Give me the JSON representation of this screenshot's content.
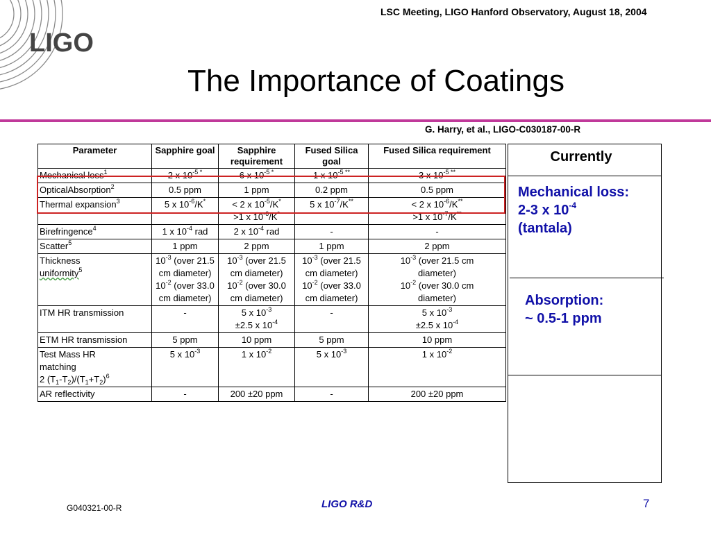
{
  "header": {
    "meeting": "LSC Meeting, LIGO Hanford Observatory, August 18, 2004"
  },
  "logo": {
    "text": "LIGO"
  },
  "title": "The Importance of Coatings",
  "citation": "G. Harry, et al.,  LIGO-C030187-00-R",
  "colors": {
    "accent_line": "#c0399a",
    "highlight": "#cc2222",
    "blue_text": "#1010a8"
  },
  "table": {
    "headers": [
      "Parameter",
      "Sapphire goal",
      "Sapphire requirement",
      "Fused Silica goal",
      "Fused Silica requirement"
    ],
    "rows": [
      {
        "param": "Mechanical loss",
        "param_sup": "1",
        "cells": [
          "2 x 10-5*",
          "6 x 10-5*",
          "1 x 10-5**",
          "3 x 10-5**"
        ]
      },
      {
        "param": "OpticalAbsorption",
        "param_sup": "2",
        "cells": [
          "0.5 ppm",
          "1 ppm",
          "0.2 ppm",
          "0.5 ppm"
        ]
      },
      {
        "param": "Thermal expansion",
        "param_sup": "3",
        "cells": [
          "5 x 10-6/K*",
          "< 2 x 10-5/K* >1 x 10-6/K*",
          "5 x 10-7/K**",
          "< 2 x 10-6/K** >1 x 10-7/K**"
        ]
      },
      {
        "param": "Birefringence",
        "param_sup": "4",
        "cells": [
          "1 x 10-4 rad",
          "2 x 10-4 rad",
          "-",
          "-"
        ]
      },
      {
        "param": "Scatter",
        "param_sup": "5",
        "cells": [
          "1 ppm",
          "2 ppm",
          "1 ppm",
          "2 ppm"
        ]
      },
      {
        "param": "Thickness uniformity",
        "param_sup": "5",
        "cells": [
          "10-3 (over 21.5 cm diameter) 10-2 (over 33.0 cm diameter)",
          "10-3 (over 21.5 cm diameter) 10-2 (over 30.0 cm diameter)",
          "10-3 (over 21.5 cm diameter) 10-2 (over 33.0 cm diameter)",
          "10-3 (over 21.5 cm diameter) 10-2 (over 30.0 cm diameter)"
        ]
      },
      {
        "param": "ITM HR transmission",
        "param_sup": "",
        "cells": [
          "-",
          "5 x 10-3 ±2.5 x 10-4",
          "-",
          "5 x 10-3 ±2.5 x 10-4"
        ]
      },
      {
        "param": "ETM HR transmission",
        "param_sup": "",
        "cells": [
          "5 ppm",
          "10 ppm",
          "5 ppm",
          "10 ppm"
        ]
      },
      {
        "param": "Test Mass HR matching 2 (T1-T2)/(T1+T2)",
        "param_sup": "6",
        "cells": [
          "5 x 10-3",
          "1 x 10-2",
          "5 x 10-3",
          "1 x 10-2"
        ]
      },
      {
        "param": "AR reflectivity",
        "param_sup": "",
        "cells": [
          "-",
          "200 ±20 ppm",
          "-",
          "200 ±20 ppm"
        ]
      }
    ]
  },
  "currently": {
    "header": "Currently",
    "mech_line1": "Mechanical loss:",
    "mech_line2_base": "2-3 x 10",
    "mech_line2_exp": "-4",
    "mech_line3": "(tantala)",
    "abs_line1": "Absorption:",
    "abs_line2": "~ 0.5-1 ppm"
  },
  "footer": {
    "doc_id": "G040321-00-R",
    "center": "LIGO R&D",
    "page": "7"
  }
}
